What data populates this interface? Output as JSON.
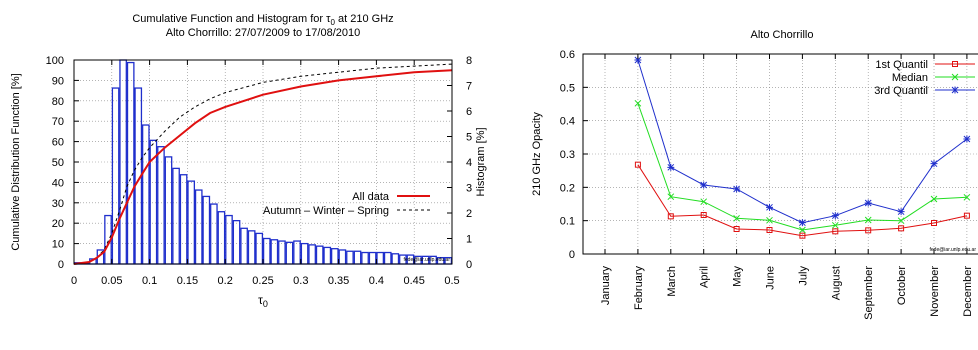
{
  "chart_data": [
    {
      "type": "histogram+line",
      "title_prefix": "Cumulative Function and Histogram for τ",
      "title_sub": "0",
      "title_suffix": " at 210 GHz",
      "subtitle": "Alto Chorrillo: 27/07/2009 to 17/08/2010",
      "xlabel": "τ",
      "xlabel_sub": "0",
      "ylabel_left": "Cumulative Distribution Function [%]",
      "ylabel_right": "Histogram [%]",
      "xlim": [
        0,
        0.5
      ],
      "ylim_left": [
        0,
        100
      ],
      "ylim_right": [
        0,
        8
      ],
      "x_ticks": [
        "0",
        "0.05",
        "0.1",
        "0.15",
        "0.2",
        "0.25",
        "0.3",
        "0.35",
        "0.4",
        "0.45",
        "0.5"
      ],
      "y_left_ticks": [
        "0",
        "10",
        "20",
        "30",
        "40",
        "50",
        "60",
        "70",
        "80",
        "90",
        "100"
      ],
      "y_right_ticks": [
        "0",
        "1",
        "2",
        "3",
        "4",
        "5",
        "6",
        "7",
        "8"
      ],
      "grid": true,
      "legend_position": "center-right",
      "credit": "fede@iar.unlp.edu.ar",
      "colors": {
        "hist": "#1f2fcc",
        "all_data": "#e01010",
        "seasonal": "#000000"
      },
      "histogram": {
        "bin_width": 0.01,
        "bin_start": 0.0,
        "values": [
          0.05,
          0.05,
          0.2,
          0.55,
          1.9,
          6.9,
          8.0,
          7.9,
          6.9,
          5.45,
          4.85,
          4.6,
          4.2,
          3.75,
          3.5,
          3.25,
          2.9,
          2.65,
          2.35,
          2.05,
          1.9,
          1.7,
          1.4,
          1.3,
          1.2,
          1.0,
          0.95,
          0.9,
          0.85,
          0.9,
          0.8,
          0.75,
          0.7,
          0.65,
          0.6,
          0.55,
          0.5,
          0.5,
          0.45,
          0.45,
          0.45,
          0.45,
          0.4,
          0.35,
          0.35,
          0.3,
          0.3,
          0.3,
          0.25,
          0.25
        ]
      },
      "series": [
        {
          "name": "All data",
          "x": [
            0,
            0.02,
            0.03,
            0.04,
            0.05,
            0.06,
            0.07,
            0.08,
            0.09,
            0.1,
            0.12,
            0.14,
            0.16,
            0.18,
            0.2,
            0.25,
            0.3,
            0.35,
            0.4,
            0.45,
            0.5
          ],
          "y": [
            0,
            1,
            3,
            6,
            13,
            22,
            30,
            38,
            44,
            50,
            57,
            63,
            69,
            74,
            77,
            83,
            87,
            90,
            92,
            94,
            95
          ]
        },
        {
          "name": "Autumn – Winter – Spring",
          "x": [
            0,
            0.02,
            0.03,
            0.04,
            0.05,
            0.06,
            0.07,
            0.08,
            0.09,
            0.1,
            0.12,
            0.14,
            0.16,
            0.18,
            0.2,
            0.25,
            0.3,
            0.35,
            0.4,
            0.45,
            0.5
          ],
          "y": [
            0,
            1,
            3,
            7,
            15,
            26,
            38,
            46,
            52,
            57,
            65,
            72,
            77,
            81,
            84,
            89,
            92,
            94,
            96,
            97,
            98
          ]
        }
      ]
    },
    {
      "type": "line",
      "title": "Alto Chorrillo",
      "ylabel": "210 GHz Opacity",
      "xlabel": "",
      "ylim": [
        0,
        0.6
      ],
      "y_ticks": [
        "0",
        "0.1",
        "0.2",
        "0.3",
        "0.4",
        "0.5",
        "0.6"
      ],
      "categories": [
        "January",
        "February",
        "March",
        "April",
        "May",
        "June",
        "July",
        "August",
        "September",
        "October",
        "November",
        "December"
      ],
      "grid": true,
      "legend_position": "top-right",
      "credit": "fede@iar.unlp.edu.ar",
      "series": [
        {
          "name": "1st Quantil",
          "color": "#e01010",
          "marker": "square",
          "values": [
            null,
            0.268,
            0.113,
            0.117,
            0.075,
            0.072,
            0.055,
            0.068,
            0.071,
            0.077,
            0.093,
            0.115
          ]
        },
        {
          "name": "Median",
          "color": "#22dd22",
          "marker": "x",
          "values": [
            null,
            0.452,
            0.172,
            0.157,
            0.107,
            0.101,
            0.072,
            0.086,
            0.102,
            0.1,
            0.165,
            0.17
          ]
        },
        {
          "name": "3rd Quantil",
          "color": "#1f2fcc",
          "marker": "star",
          "values": [
            null,
            0.582,
            0.26,
            0.207,
            0.195,
            0.14,
            0.094,
            0.115,
            0.153,
            0.127,
            0.271,
            0.345
          ]
        }
      ]
    }
  ]
}
